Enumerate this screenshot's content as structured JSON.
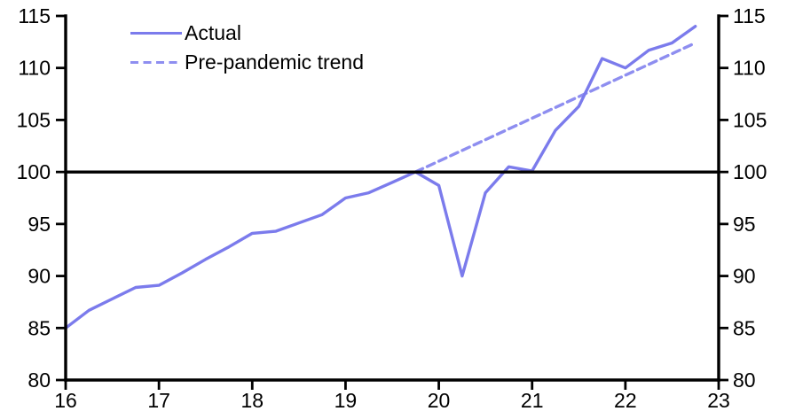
{
  "chart_data": {
    "type": "line",
    "title": "",
    "xlabel": "",
    "ylabel": "",
    "xlim": [
      16,
      23
    ],
    "ylim": [
      80,
      115
    ],
    "x_ticks": [
      16,
      17,
      18,
      19,
      20,
      21,
      22,
      23
    ],
    "y_ticks": [
      80,
      85,
      90,
      95,
      100,
      105,
      110,
      115
    ],
    "y_axis_sides": [
      "left",
      "right"
    ],
    "grid": false,
    "legend_position": "top-left",
    "axis_color": "#000000",
    "reference_line": {
      "value": 100,
      "color": "#000000"
    },
    "series": [
      {
        "name": "Actual",
        "style": "solid",
        "color": "#7b7bec",
        "x": [
          16,
          16.25,
          16.5,
          16.75,
          17,
          17.25,
          17.5,
          17.75,
          18,
          18.25,
          18.5,
          18.75,
          19,
          19.25,
          19.5,
          19.75,
          20,
          20.25,
          20.5,
          20.75,
          21,
          21.25,
          21.5,
          21.75,
          22,
          22.25,
          22.5,
          22.75
        ],
        "values": [
          85,
          86.7,
          87.8,
          88.9,
          89.1,
          90.3,
          91.6,
          92.8,
          94.1,
          94.3,
          95.1,
          95.9,
          97.5,
          98,
          99,
          100,
          98.7,
          90,
          98,
          100.5,
          100.1,
          104,
          106.3,
          110.9,
          110,
          111.7,
          112.4,
          114
        ]
      },
      {
        "name": "Pre-pandemic trend",
        "style": "dashed",
        "color": "#8e8ef0",
        "x": [
          19.75,
          22.75
        ],
        "values": [
          100,
          112.4
        ]
      }
    ]
  }
}
